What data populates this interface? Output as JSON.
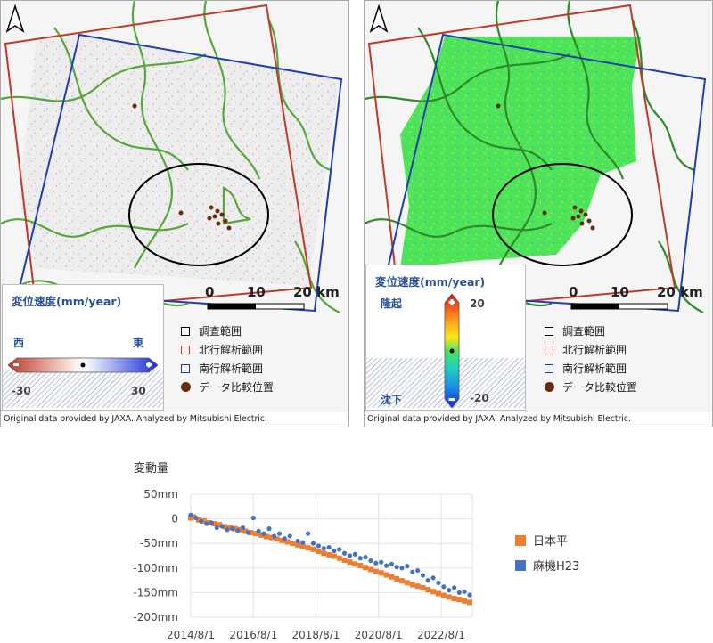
{
  "credit": "Original data provided by JAXA. Analyzed by Mitsubishi Electric.",
  "scale_bar": {
    "labels": [
      "0",
      "10",
      "20 km"
    ]
  },
  "legend": {
    "items": [
      {
        "label": "調査範囲",
        "color": "#000000",
        "shape": "square"
      },
      {
        "label": "北行解析範囲",
        "color": "#c0392b",
        "shape": "square"
      },
      {
        "label": "南行解析範囲",
        "color": "#1f3fb0",
        "shape": "square"
      },
      {
        "label": "データ比較位置",
        "color": "#6b2a0e",
        "shape": "dot"
      }
    ]
  },
  "left_map": {
    "colorbar_title": "変位速度(mm/year)",
    "west_label": "西",
    "east_label": "東",
    "min": "-30",
    "max": "30",
    "colors": [
      "#c0392b",
      "#3030e0"
    ]
  },
  "right_map": {
    "colorbar_title": "変位速度(mm/year)",
    "uplift_label": "隆起",
    "subsidence_label": "沈下",
    "max": "20",
    "min": "-20"
  },
  "chart_data": {
    "type": "scatter",
    "ylabel": "変動量",
    "ylim": [
      -200,
      50
    ],
    "y_ticks": [
      "50mm",
      "0",
      "-50mm",
      "-100mm",
      "-150mm",
      "-200mm"
    ],
    "x_ticks": [
      "2014/8/1",
      "2016/8/1",
      "2018/8/1",
      "2020/8/1",
      "2022/8/1"
    ],
    "x_range": [
      "2014/8/1",
      "2023/8/1"
    ],
    "grid": true,
    "legend_position": "right",
    "series": [
      {
        "name": "日本平",
        "color": "#ed7d31",
        "marker": "square",
        "points": [
          [
            "2014/8/1",
            2
          ],
          [
            "2014/9/1",
            4
          ],
          [
            "2014/11/1",
            -2
          ],
          [
            "2015/1/1",
            -4
          ],
          [
            "2015/3/1",
            -8
          ],
          [
            "2015/5/1",
            -10
          ],
          [
            "2015/7/1",
            -12
          ],
          [
            "2015/9/1",
            -16
          ],
          [
            "2015/11/1",
            -18
          ],
          [
            "2016/1/1",
            -20
          ],
          [
            "2016/3/1",
            -22
          ],
          [
            "2016/5/1",
            -25
          ],
          [
            "2016/7/1",
            -28
          ],
          [
            "2016/9/1",
            -30
          ],
          [
            "2016/11/1",
            -33
          ],
          [
            "2017/1/1",
            -36
          ],
          [
            "2017/3/1",
            -38
          ],
          [
            "2017/5/1",
            -41
          ],
          [
            "2017/7/1",
            -44
          ],
          [
            "2017/9/1",
            -47
          ],
          [
            "2017/11/1",
            -50
          ],
          [
            "2018/1/1",
            -53
          ],
          [
            "2018/3/1",
            -56
          ],
          [
            "2018/5/1",
            -59
          ],
          [
            "2018/7/1",
            -62
          ],
          [
            "2018/9/1",
            -66
          ],
          [
            "2018/11/1",
            -70
          ],
          [
            "2019/1/1",
            -73
          ],
          [
            "2019/3/1",
            -76
          ],
          [
            "2019/5/1",
            -80
          ],
          [
            "2019/7/1",
            -84
          ],
          [
            "2019/9/1",
            -88
          ],
          [
            "2019/11/1",
            -92
          ],
          [
            "2020/1/1",
            -95
          ],
          [
            "2020/3/1",
            -99
          ],
          [
            "2020/5/1",
            -103
          ],
          [
            "2020/7/1",
            -107
          ],
          [
            "2020/9/1",
            -110
          ],
          [
            "2020/11/1",
            -114
          ],
          [
            "2021/1/1",
            -118
          ],
          [
            "2021/3/1",
            -122
          ],
          [
            "2021/5/1",
            -126
          ],
          [
            "2021/7/1",
            -130
          ],
          [
            "2021/9/1",
            -134
          ],
          [
            "2021/11/1",
            -137
          ],
          [
            "2022/1/1",
            -140
          ],
          [
            "2022/3/1",
            -144
          ],
          [
            "2022/5/1",
            -148
          ],
          [
            "2022/7/1",
            -152
          ],
          [
            "2022/9/1",
            -156
          ],
          [
            "2022/11/1",
            -159
          ],
          [
            "2023/1/1",
            -162
          ],
          [
            "2023/3/1",
            -164
          ],
          [
            "2023/5/1",
            -167
          ],
          [
            "2023/7/1",
            -170
          ]
        ]
      },
      {
        "name": "麻機H23",
        "color": "#4472c4",
        "marker": "dot",
        "points": [
          [
            "2014/8/1",
            8
          ],
          [
            "2014/10/1",
            2
          ],
          [
            "2014/12/1",
            -5
          ],
          [
            "2015/2/1",
            -10
          ],
          [
            "2015/4/1",
            -8
          ],
          [
            "2015/6/1",
            -18
          ],
          [
            "2015/8/1",
            -15
          ],
          [
            "2015/10/1",
            -22
          ],
          [
            "2015/12/1",
            -20
          ],
          [
            "2016/2/1",
            -24
          ],
          [
            "2016/4/1",
            -18
          ],
          [
            "2016/6/1",
            -28
          ],
          [
            "2016/8/1",
            2
          ],
          [
            "2016/10/1",
            -25
          ],
          [
            "2016/12/1",
            -30
          ],
          [
            "2017/2/1",
            -20
          ],
          [
            "2017/4/1",
            -35
          ],
          [
            "2017/6/1",
            -30
          ],
          [
            "2017/8/1",
            -40
          ],
          [
            "2017/10/1",
            -35
          ],
          [
            "2018/1/1",
            -45
          ],
          [
            "2018/3/1",
            -48
          ],
          [
            "2018/5/1",
            -30
          ],
          [
            "2018/7/1",
            -50
          ],
          [
            "2018/9/1",
            -55
          ],
          [
            "2018/11/1",
            -60
          ],
          [
            "2019/1/1",
            -58
          ],
          [
            "2019/3/1",
            -65
          ],
          [
            "2019/5/1",
            -62
          ],
          [
            "2019/7/1",
            -70
          ],
          [
            "2019/9/1",
            -75
          ],
          [
            "2019/11/1",
            -72
          ],
          [
            "2020/1/1",
            -80
          ],
          [
            "2020/3/1",
            -78
          ],
          [
            "2020/5/1",
            -85
          ],
          [
            "2020/7/1",
            -90
          ],
          [
            "2020/9/1",
            -88
          ],
          [
            "2020/11/1",
            -95
          ],
          [
            "2021/1/1",
            -92
          ],
          [
            "2021/3/1",
            -98
          ],
          [
            "2021/5/1",
            -100
          ],
          [
            "2021/7/1",
            -96
          ],
          [
            "2021/9/1",
            -108
          ],
          [
            "2021/11/1",
            -105
          ],
          [
            "2022/1/1",
            -115
          ],
          [
            "2022/3/1",
            -125
          ],
          [
            "2022/5/1",
            -120
          ],
          [
            "2022/7/1",
            -130
          ],
          [
            "2022/9/1",
            -138
          ],
          [
            "2022/11/1",
            -145
          ],
          [
            "2023/1/1",
            -140
          ],
          [
            "2023/3/1",
            -150
          ],
          [
            "2023/5/1",
            -148
          ],
          [
            "2023/7/1",
            -155
          ]
        ]
      }
    ]
  }
}
